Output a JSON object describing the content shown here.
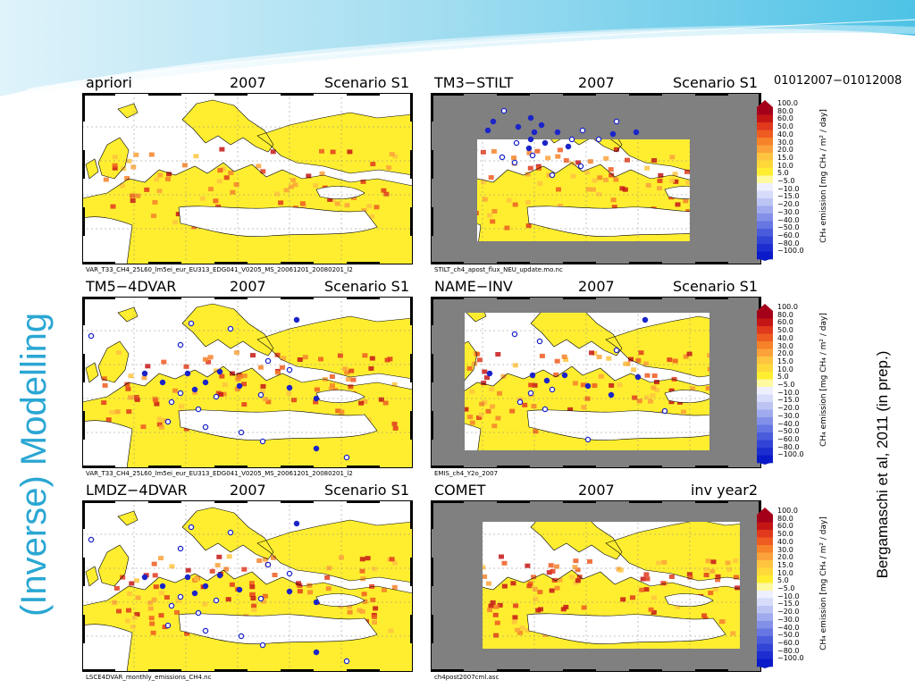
{
  "side_title": "(Inverse) Modelling",
  "citation": "Bergamaschi et al, 2011 (in prep.)",
  "date_range": "01012007−01012008",
  "panels": [
    {
      "model": "apriori",
      "year": "2007",
      "scenario": "Scenario S1",
      "file": "VAR_T33_CH4_25L60_lm5ei_eur_EU313_EDG041_V0205_MS_20061201_20080201_l2",
      "domain": "full",
      "stations": "none"
    },
    {
      "model": "TM3−STILT",
      "year": "2007",
      "scenario": "Scenario S1",
      "file": "STILT_ch4_apost_flux_NEU_update.mo.nc",
      "domain": "stilt",
      "stations": "stilt"
    },
    {
      "model": "TM5−4DVAR",
      "year": "2007",
      "scenario": "Scenario S1",
      "file": "VAR_T33_CH4_25L60_lm5ei_eur_EU313_EDG041_V0205_MS_20061201_20080201_l2",
      "domain": "full",
      "stations": "full"
    },
    {
      "model": "NAME−INV",
      "year": "2007",
      "scenario": "Scenario S1",
      "file": "EMIS_ch4_Y2o_2007",
      "domain": "name",
      "stations": "name"
    },
    {
      "model": "LMDZ−4DVAR",
      "year": "2007",
      "scenario": "Scenario S1",
      "file": "LSCE4DVAR_monthly_emissions_CH4.nc",
      "domain": "full",
      "stations": "full"
    },
    {
      "model": "COMET",
      "year": "2007",
      "scenario": "inv year2",
      "file": "ch4post2007cml.asc",
      "domain": "comet",
      "stations": "none"
    }
  ],
  "colorbar": {
    "labels": [
      "100.0",
      "80.0",
      "60.0",
      "50.0",
      "40.0",
      "30.0",
      "20.0",
      "15.0",
      "10.0",
      "5.0",
      "−5.0",
      "−10.0",
      "−15.0",
      "−20.0",
      "−30.0",
      "−40.0",
      "−50.0",
      "−60.0",
      "−80.0",
      "−100.0"
    ],
    "unit": "CH₄ emission [mg CH₄ / m² / day]",
    "colors": [
      "#a5001a",
      "#c51616",
      "#e0391c",
      "#ee5c21",
      "#f6822a",
      "#fba23a",
      "#ffc440",
      "#ffd93a",
      "#ffee30",
      "#fff9a0",
      "#eef0ff",
      "#d6dcfa",
      "#bcc4f4",
      "#a0aaee",
      "#8390e8",
      "#6676e2",
      "#4a5cdc",
      "#3244d6",
      "#1c2ecf",
      "#0a1ac8"
    ]
  },
  "palette": {
    "accent": "#2aa7d3",
    "gray": "#808080",
    "land_yellow": "#ffee30",
    "high_red": "#c51616"
  }
}
